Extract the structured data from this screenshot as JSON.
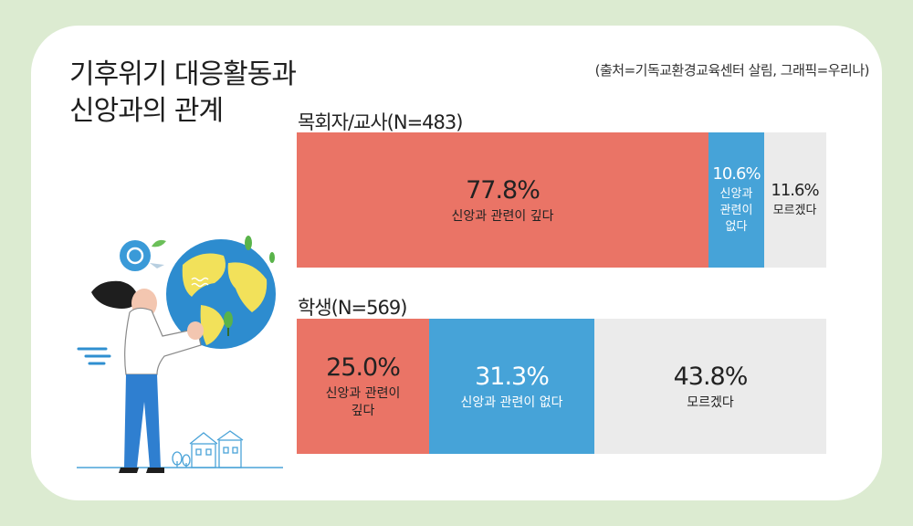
{
  "title": {
    "line1": "기후위기 대응활동과",
    "line2": "신앙과의 관계"
  },
  "source": "(출처=기독교환경교육센터 살림,  그래픽=우리나)",
  "colors": {
    "deep": "#ea7466",
    "none": "#46a3d8",
    "unknown": "#ebebeb"
  },
  "chart_data": {
    "type": "bar",
    "orientation": "horizontal-stacked-100",
    "categories": [
      "목회자/교사(N=483)",
      "학생(N=569)"
    ],
    "series": [
      {
        "name": "신앙과 관련이 깊다",
        "values": [
          77.8,
          25.0
        ],
        "value_labels": [
          "77.8%",
          "25.0%"
        ],
        "label_lines": [
          [
            "신앙과 관련이 깊다"
          ],
          [
            "신앙과 관련이",
            "깊다"
          ]
        ]
      },
      {
        "name": "신앙과 관련이 없다",
        "values": [
          10.6,
          31.3
        ],
        "value_labels": [
          "10.6%",
          "31.3%"
        ],
        "label_lines": [
          [
            "신앙과",
            "관련이",
            "없다"
          ],
          [
            "신앙과 관련이 없다"
          ]
        ]
      },
      {
        "name": "모르겠다",
        "values": [
          11.6,
          43.8
        ],
        "value_labels": [
          "11.6%",
          "43.8%"
        ],
        "label_lines": [
          [
            "모르겠다"
          ],
          [
            "모르겠다"
          ]
        ]
      }
    ]
  }
}
